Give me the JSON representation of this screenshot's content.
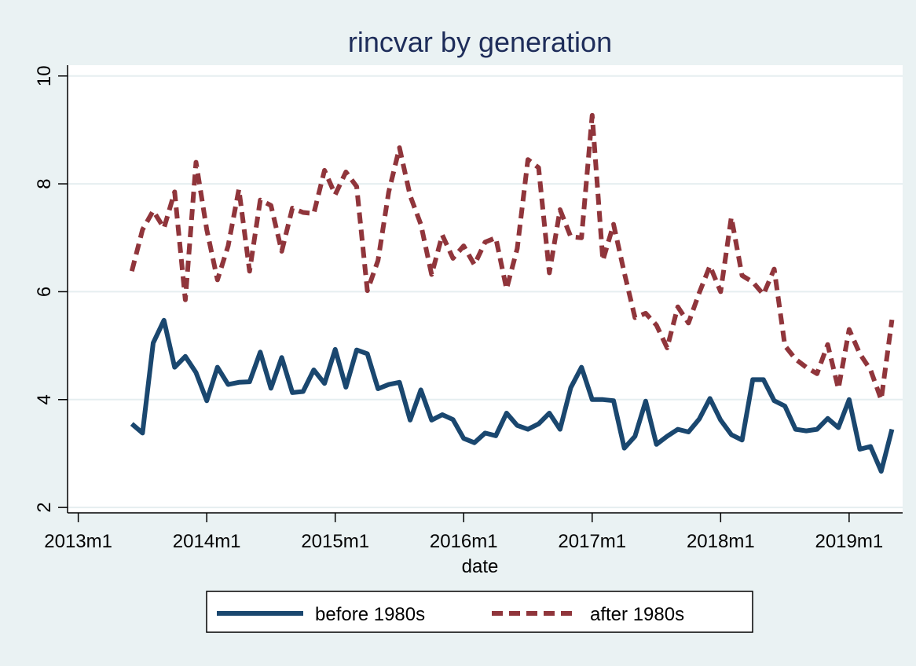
{
  "chart_data": {
    "type": "line",
    "title": "rincvar by generation",
    "xlabel": "date",
    "ylabel": "",
    "xlim": [
      "2012-12",
      "2019-06"
    ],
    "ylim": [
      1.9,
      10.2
    ],
    "x_ticks": [
      "2013m1",
      "2014m1",
      "2015m1",
      "2016m1",
      "2017m1",
      "2018m1",
      "2019m1"
    ],
    "y_ticks": [
      "2",
      "4",
      "6",
      "8",
      "10"
    ],
    "grid": true,
    "legend_position": "bottom",
    "x": [
      "2013-06",
      "2013-07",
      "2013-08",
      "2013-09",
      "2013-10",
      "2013-11",
      "2013-12",
      "2014-01",
      "2014-02",
      "2014-03",
      "2014-04",
      "2014-05",
      "2014-06",
      "2014-07",
      "2014-08",
      "2014-09",
      "2014-10",
      "2014-11",
      "2014-12",
      "2015-01",
      "2015-02",
      "2015-03",
      "2015-04",
      "2015-05",
      "2015-06",
      "2015-07",
      "2015-08",
      "2015-09",
      "2015-10",
      "2015-11",
      "2015-12",
      "2016-01",
      "2016-02",
      "2016-03",
      "2016-04",
      "2016-05",
      "2016-06",
      "2016-07",
      "2016-08",
      "2016-09",
      "2016-10",
      "2016-11",
      "2016-12",
      "2017-01",
      "2017-02",
      "2017-03",
      "2017-04",
      "2017-05",
      "2017-06",
      "2017-07",
      "2017-08",
      "2017-09",
      "2017-10",
      "2017-11",
      "2017-12",
      "2018-01",
      "2018-02",
      "2018-03",
      "2018-04",
      "2018-05",
      "2018-06",
      "2018-07",
      "2018-08",
      "2018-09",
      "2018-10",
      "2018-11",
      "2018-12",
      "2019-01",
      "2019-02",
      "2019-03",
      "2019-04",
      "2019-05"
    ],
    "series": [
      {
        "name": "before 1980s",
        "color": "#1a476f",
        "style": "solid",
        "values": [
          3.55,
          3.38,
          5.05,
          5.47,
          4.6,
          4.8,
          4.5,
          3.98,
          4.6,
          4.28,
          4.32,
          4.33,
          4.88,
          4.21,
          4.78,
          4.13,
          4.15,
          4.55,
          4.3,
          4.93,
          4.23,
          4.92,
          4.85,
          4.2,
          4.28,
          4.32,
          3.62,
          4.18,
          3.62,
          3.72,
          3.63,
          3.28,
          3.2,
          3.38,
          3.33,
          3.75,
          3.52,
          3.45,
          3.55,
          3.75,
          3.45,
          4.22,
          4.6,
          4.0,
          4.0,
          3.98,
          3.1,
          3.32,
          3.97,
          3.17,
          3.32,
          3.45,
          3.4,
          3.64,
          4.02,
          3.62,
          3.35,
          3.25,
          4.37,
          4.37,
          3.98,
          3.88,
          3.45,
          3.42,
          3.45,
          3.65,
          3.48,
          4.0,
          3.08,
          3.13,
          2.67,
          3.45
        ]
      },
      {
        "name": "after 1980s",
        "color": "#90353b",
        "style": "dashed",
        "values": [
          6.38,
          7.15,
          7.5,
          7.18,
          7.85,
          5.85,
          8.4,
          7.15,
          6.22,
          6.85,
          7.9,
          6.38,
          7.7,
          7.6,
          6.75,
          7.55,
          7.47,
          7.45,
          8.25,
          7.8,
          8.22,
          7.95,
          6.02,
          6.58,
          7.85,
          8.67,
          7.78,
          7.25,
          6.32,
          7.05,
          6.62,
          6.85,
          6.5,
          6.92,
          7.0,
          6.05,
          6.8,
          8.45,
          8.3,
          6.35,
          7.52,
          7.02,
          7.0,
          9.27,
          6.58,
          7.25,
          6.35,
          5.52,
          5.6,
          5.38,
          4.96,
          5.72,
          5.42,
          5.98,
          6.48,
          6.0,
          7.38,
          6.3,
          6.18,
          5.95,
          6.42,
          5.0,
          4.75,
          4.6,
          4.48,
          5.02,
          4.2,
          5.3,
          4.85,
          4.55,
          4.0,
          5.48
        ]
      }
    ]
  }
}
